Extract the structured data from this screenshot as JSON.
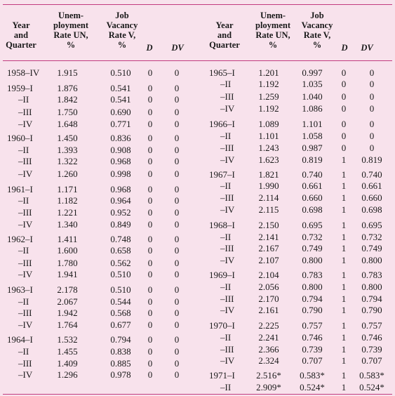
{
  "headers": {
    "year": [
      "Year",
      "and",
      "Quarter"
    ],
    "unemp": [
      "Unem-",
      "ployment",
      "Rate UN,",
      "%"
    ],
    "job": [
      "Job",
      "Vacancy",
      "Rate V,",
      "%"
    ],
    "d": "D",
    "dv": "DV"
  },
  "left_rows": [
    {
      "q": "1958–IV",
      "un": "1.915",
      "v": "0.510",
      "d": "0",
      "dv": "0"
    },
    {
      "q": "1959–I",
      "un": "1.876",
      "v": "0.541",
      "d": "0",
      "dv": "0"
    },
    {
      "q": "–II",
      "un": "1.842",
      "v": "0.541",
      "d": "0",
      "dv": "0"
    },
    {
      "q": "–III",
      "un": "1.750",
      "v": "0.690",
      "d": "0",
      "dv": "0"
    },
    {
      "q": "–IV",
      "un": "1.648",
      "v": "0.771",
      "d": "0",
      "dv": "0"
    },
    {
      "q": "1960–I",
      "un": "1.450",
      "v": "0.836",
      "d": "0",
      "dv": "0"
    },
    {
      "q": "–II",
      "un": "1.393",
      "v": "0.908",
      "d": "0",
      "dv": "0"
    },
    {
      "q": "–III",
      "un": "1.322",
      "v": "0.968",
      "d": "0",
      "dv": "0"
    },
    {
      "q": "–IV",
      "un": "1.260",
      "v": "0.998",
      "d": "0",
      "dv": "0"
    },
    {
      "q": "1961–I",
      "un": "1.171",
      "v": "0.968",
      "d": "0",
      "dv": "0"
    },
    {
      "q": "–II",
      "un": "1.182",
      "v": "0.964",
      "d": "0",
      "dv": "0"
    },
    {
      "q": "–III",
      "un": "1.221",
      "v": "0.952",
      "d": "0",
      "dv": "0"
    },
    {
      "q": "–IV",
      "un": "1.340",
      "v": "0.849",
      "d": "0",
      "dv": "0"
    },
    {
      "q": "1962–I",
      "un": "1.411",
      "v": "0.748",
      "d": "0",
      "dv": "0"
    },
    {
      "q": "–II",
      "un": "1.600",
      "v": "0.658",
      "d": "0",
      "dv": "0"
    },
    {
      "q": "–III",
      "un": "1.780",
      "v": "0.562",
      "d": "0",
      "dv": "0"
    },
    {
      "q": "–IV",
      "un": "1.941",
      "v": "0.510",
      "d": "0",
      "dv": "0"
    },
    {
      "q": "1963–I",
      "un": "2.178",
      "v": "0.510",
      "d": "0",
      "dv": "0"
    },
    {
      "q": "–II",
      "un": "2.067",
      "v": "0.544",
      "d": "0",
      "dv": "0"
    },
    {
      "q": "–III",
      "un": "1.942",
      "v": "0.568",
      "d": "0",
      "dv": "0"
    },
    {
      "q": "–IV",
      "un": "1.764",
      "v": "0.677",
      "d": "0",
      "dv": "0"
    },
    {
      "q": "1964–I",
      "un": "1.532",
      "v": "0.794",
      "d": "0",
      "dv": "0"
    },
    {
      "q": "–II",
      "un": "1.455",
      "v": "0.838",
      "d": "0",
      "dv": "0"
    },
    {
      "q": "–III",
      "un": "1.409",
      "v": "0.885",
      "d": "0",
      "dv": "0"
    },
    {
      "q": "–IV",
      "un": "1.296",
      "v": "0.978",
      "d": "0",
      "dv": "0"
    }
  ],
  "right_rows": [
    {
      "q": "1965–I",
      "un": "1.201",
      "v": "0.997",
      "d": "0",
      "dv": "0"
    },
    {
      "q": "–II",
      "un": "1.192",
      "v": "1.035",
      "d": "0",
      "dv": "0"
    },
    {
      "q": "–III",
      "un": "1.259",
      "v": "1.040",
      "d": "0",
      "dv": "0"
    },
    {
      "q": "–IV",
      "un": "1.192",
      "v": "1.086",
      "d": "0",
      "dv": "0"
    },
    {
      "q": "1966–I",
      "un": "1.089",
      "v": "1.101",
      "d": "0",
      "dv": "0"
    },
    {
      "q": "–II",
      "un": "1.101",
      "v": "1.058",
      "d": "0",
      "dv": "0"
    },
    {
      "q": "–III",
      "un": "1.243",
      "v": "0.987",
      "d": "0",
      "dv": "0"
    },
    {
      "q": "–IV",
      "un": "1.623",
      "v": "0.819",
      "d": "1",
      "dv": "0.819"
    },
    {
      "q": "1967–I",
      "un": "1.821",
      "v": "0.740",
      "d": "1",
      "dv": "0.740"
    },
    {
      "q": "–II",
      "un": "1.990",
      "v": "0.661",
      "d": "1",
      "dv": "0.661"
    },
    {
      "q": "–III",
      "un": "2.114",
      "v": "0.660",
      "d": "1",
      "dv": "0.660"
    },
    {
      "q": "–IV",
      "un": "2.115",
      "v": "0.698",
      "d": "1",
      "dv": "0.698"
    },
    {
      "q": "1968–I",
      "un": "2.150",
      "v": "0.695",
      "d": "1",
      "dv": "0.695"
    },
    {
      "q": "–II",
      "un": "2.141",
      "v": "0.732",
      "d": "1",
      "dv": "0.732"
    },
    {
      "q": "–III",
      "un": "2.167",
      "v": "0.749",
      "d": "1",
      "dv": "0.749"
    },
    {
      "q": "–IV",
      "un": "2.107",
      "v": "0.800",
      "d": "1",
      "dv": "0.800"
    },
    {
      "q": "1969–I",
      "un": "2.104",
      "v": "0.783",
      "d": "1",
      "dv": "0.783"
    },
    {
      "q": "–II",
      "un": "2.056",
      "v": "0.800",
      "d": "1",
      "dv": "0.800"
    },
    {
      "q": "–III",
      "un": "2.170",
      "v": "0.794",
      "d": "1",
      "dv": "0.794"
    },
    {
      "q": "–IV",
      "un": "2.161",
      "v": "0.790",
      "d": "1",
      "dv": "0.790"
    },
    {
      "q": "1970–I",
      "un": "2.225",
      "v": "0.757",
      "d": "1",
      "dv": "0.757"
    },
    {
      "q": "–II",
      "un": "2.241",
      "v": "0.746",
      "d": "1",
      "dv": "0.746"
    },
    {
      "q": "–III",
      "un": "2.366",
      "v": "0.739",
      "d": "1",
      "dv": "0.739"
    },
    {
      "q": "–IV",
      "un": "2.324",
      "v": "0.707",
      "d": "1",
      "dv": "0.707"
    },
    {
      "q": "1971–I",
      "un": "2.516*",
      "v": "0.583*",
      "d": "1",
      "dv": "0.583*"
    },
    {
      "q": "–II",
      "un": "2.909*",
      "v": "0.524*",
      "d": "1",
      "dv": "0.524*"
    }
  ]
}
